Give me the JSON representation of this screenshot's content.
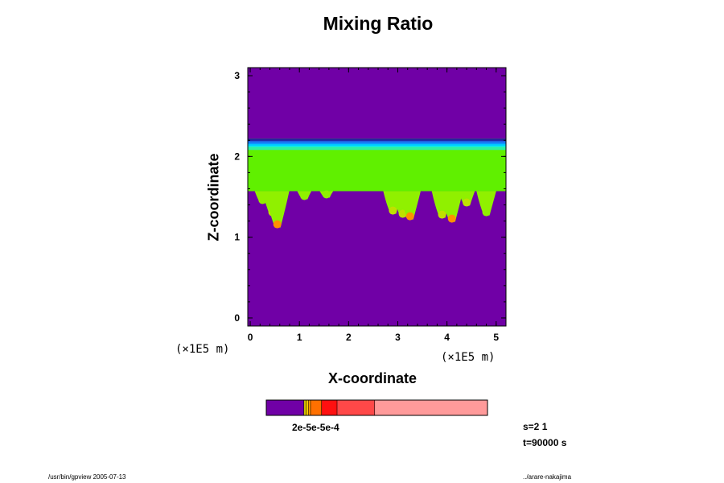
{
  "chart_data": {
    "type": "heatmap",
    "title": "Mixing Ratio",
    "xlabel": "X-coordinate",
    "ylabel": "Z-coordinate",
    "x_unit": "(×1E5 m)",
    "z_unit": "(×1E5 m)",
    "xlim": [
      -0.05,
      5.2
    ],
    "zlim": [
      -0.1,
      3.1
    ],
    "x_ticks": [
      "0",
      "1",
      "2",
      "3",
      "4",
      "5"
    ],
    "z_ticks": [
      "0",
      "1",
      "2",
      "3"
    ],
    "grid": false,
    "field": {
      "background_color": "#7000a6",
      "layer_bottom_z": 1.57,
      "layer_top_z": 2.22,
      "layer_colors": [
        "#00e8ff",
        "#00c8ff",
        "#1090ff",
        "#2060e0",
        "#2020a0"
      ],
      "bulk_color": "#60f000",
      "plumes": [
        {
          "x": 0.25,
          "depth_z": 0.15,
          "color": "#90f000"
        },
        {
          "x": 0.45,
          "depth_z": 0.3,
          "color": "#c0e000"
        },
        {
          "x": 0.55,
          "depth_z": 0.45,
          "color": "#ff9000"
        },
        {
          "x": 1.1,
          "depth_z": 0.1,
          "color": "#90f000"
        },
        {
          "x": 1.55,
          "depth_z": 0.08,
          "color": "#90f000"
        },
        {
          "x": 2.9,
          "depth_z": 0.28,
          "color": "#c0e000"
        },
        {
          "x": 3.1,
          "depth_z": 0.32,
          "color": "#c0e000"
        },
        {
          "x": 3.25,
          "depth_z": 0.35,
          "color": "#ff9000"
        },
        {
          "x": 3.9,
          "depth_z": 0.33,
          "color": "#c0e000"
        },
        {
          "x": 4.1,
          "depth_z": 0.38,
          "color": "#ff9000"
        },
        {
          "x": 4.4,
          "depth_z": 0.18,
          "color": "#c0e000"
        },
        {
          "x": 4.8,
          "depth_z": 0.3,
          "color": "#90f000"
        }
      ]
    },
    "colorbar": {
      "segments": [
        {
          "fraction": 0.17,
          "color": "#7000a6"
        },
        {
          "fraction": 0.01,
          "color": "#d8c800"
        },
        {
          "fraction": 0.01,
          "color": "#ffd000"
        },
        {
          "fraction": 0.01,
          "color": "#ffa000"
        },
        {
          "fraction": 0.05,
          "color": "#ff7000"
        },
        {
          "fraction": 0.07,
          "color": "#ff1010"
        },
        {
          "fraction": 0.17,
          "color": "#ff4848"
        },
        {
          "fraction": 0.51,
          "color": "#ff9a9a"
        }
      ],
      "labels_overlap": "2e-5e-5e-4"
    }
  },
  "info": {
    "s_line": "s=2 1",
    "t_line": "t=90000 s"
  },
  "footer": {
    "left": "/usr/bin/gpview 2005-07-13",
    "right": "../arare-nakajima"
  }
}
